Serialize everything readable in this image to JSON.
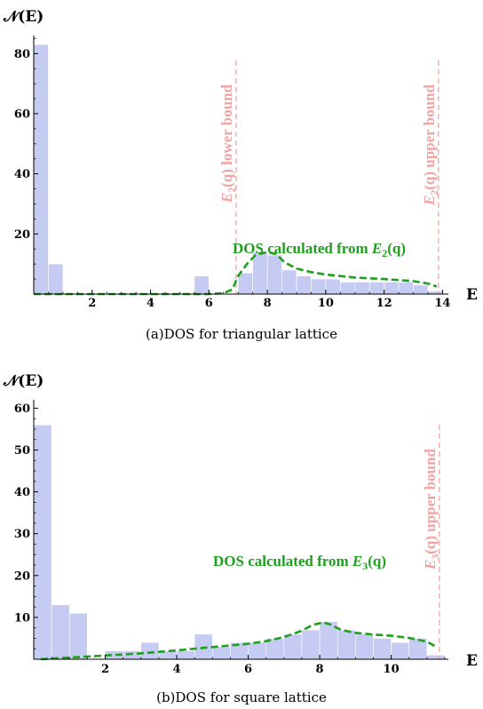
{
  "chart_data": [
    {
      "type": "bar",
      "caption": "(a)DOS for triangular lattice",
      "ylabel": "𝒩(E)",
      "xlabel": "E",
      "xlim": [
        0,
        14.2
      ],
      "ylim": [
        0,
        86
      ],
      "xticks": [
        2,
        4,
        6,
        8,
        10,
        12,
        14
      ],
      "yticks": [
        20,
        40,
        60,
        80
      ],
      "bins": {
        "width": 0.5,
        "starts": [
          0,
          0.5,
          5.5,
          7,
          7.5,
          8,
          8.5,
          9,
          9.5,
          10,
          10.5,
          11,
          11.5,
          12,
          12.5,
          13,
          13.5
        ],
        "values": [
          83,
          10,
          6,
          7,
          14,
          13,
          8,
          6,
          5,
          5,
          4,
          4,
          4,
          4,
          4,
          3,
          1
        ]
      },
      "series": [
        {
          "name": "DOS calculated from E₂(q)",
          "x": [
            0,
            1,
            2,
            3,
            4,
            5,
            6,
            6.5,
            6.8,
            7.0,
            7.3,
            7.6,
            8.0,
            8.3,
            8.6,
            9.0,
            9.5,
            10,
            11,
            12,
            13,
            13.5,
            13.8
          ],
          "y": [
            0,
            0,
            0,
            0,
            0,
            0,
            0,
            0.3,
            1.5,
            6,
            10,
            13,
            14,
            13.3,
            10.5,
            8.5,
            7.3,
            6.5,
            5.5,
            5,
            4.3,
            3.5,
            2.5
          ]
        }
      ],
      "lines": [
        {
          "x": 6.93,
          "label_main": "E",
          "label_sub": "2",
          "label_rest": "(q) lower bound"
        },
        {
          "x": 13.86,
          "label_main": "E",
          "label_sub": "2",
          "label_rest": "(q) upper bound"
        }
      ],
      "dos_label": {
        "main": "DOS calculated from ",
        "var": "E",
        "sub": "2",
        "rest": "(q)"
      }
    },
    {
      "type": "bar",
      "caption": "(b)DOS for square lattice",
      "ylabel": "𝒩(E)",
      "xlabel": "E",
      "xlim": [
        0,
        11.6
      ],
      "ylim": [
        0,
        62
      ],
      "xticks": [
        2,
        4,
        6,
        8,
        10
      ],
      "yticks": [
        10,
        20,
        30,
        40,
        50,
        60
      ],
      "bins": {
        "width": 0.5,
        "starts": [
          0,
          0.5,
          1.0,
          2.0,
          2.5,
          3.0,
          3.5,
          4.0,
          4.5,
          5.0,
          5.5,
          6.0,
          6.5,
          7.0,
          7.5,
          8.0,
          8.5,
          9.0,
          9.5,
          10.0,
          10.5,
          11.0
        ],
        "values": [
          56,
          13,
          11,
          2,
          2,
          4,
          2,
          2,
          6,
          3,
          4,
          4,
          5,
          6,
          7,
          9,
          7,
          6,
          5,
          4,
          5,
          1
        ]
      },
      "series": [
        {
          "name": "DOS calculated from E₃(q)",
          "x": [
            0.2,
            1,
            2,
            3,
            4,
            5,
            6,
            6.5,
            7,
            7.5,
            7.8,
            8.1,
            8.3,
            8.6,
            9,
            9.5,
            10,
            10.5,
            11,
            11.3
          ],
          "y": [
            0,
            0.4,
            0.9,
            1.4,
            2.1,
            2.9,
            3.7,
            4.3,
            5.3,
            6.8,
            8.2,
            8.8,
            8.3,
            7,
            6.3,
            5.9,
            5.6,
            5.1,
            4.2,
            2.8
          ]
        }
      ],
      "lines": [
        {
          "x": 11.35,
          "label_main": "E",
          "label_sub": "3",
          "label_rest": "(q) upper bound"
        }
      ],
      "dos_label": {
        "main": "DOS calculated from ",
        "var": "E",
        "sub": "3",
        "rest": "(q)"
      }
    }
  ]
}
